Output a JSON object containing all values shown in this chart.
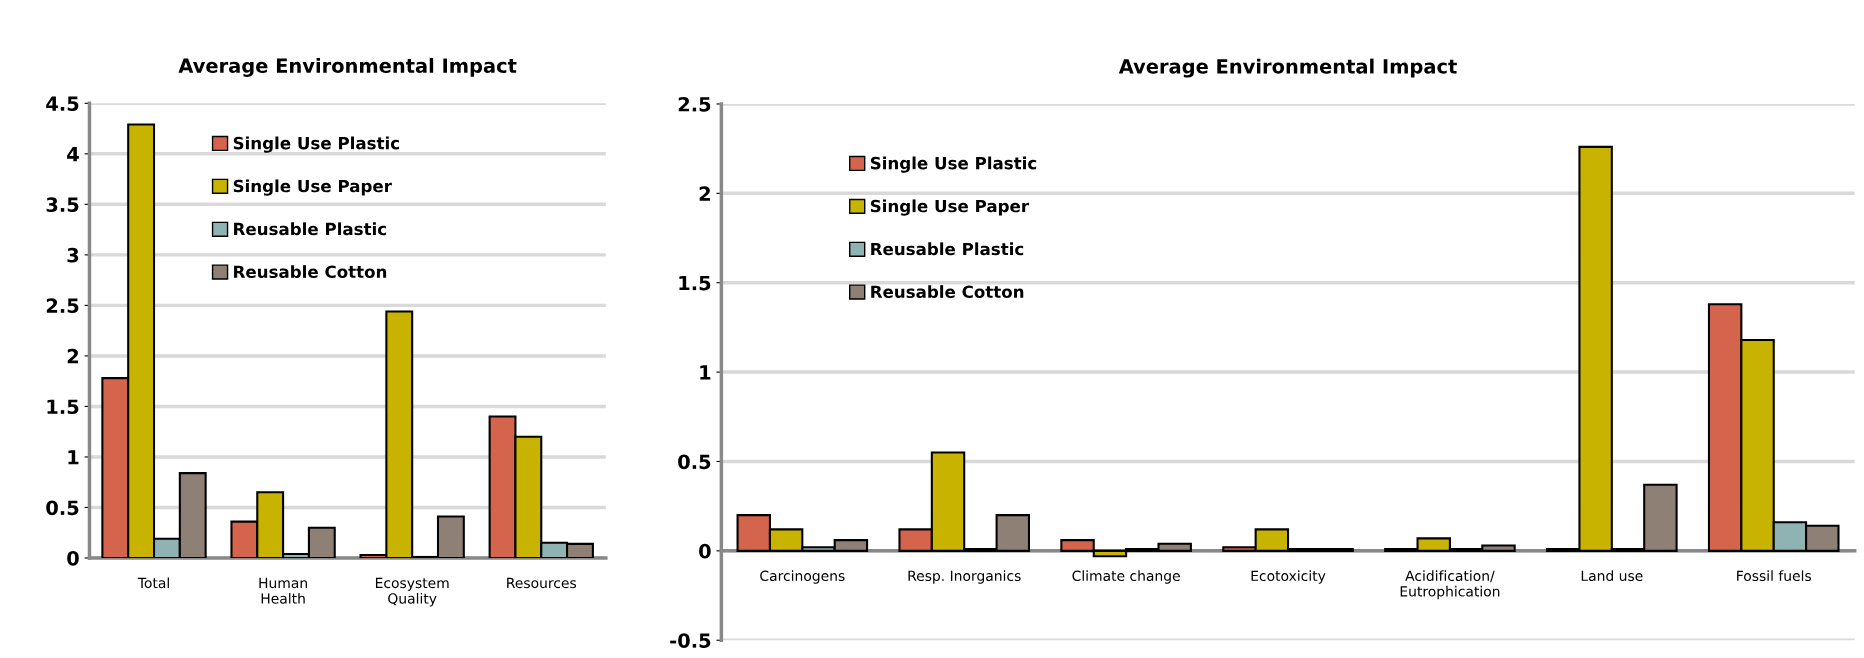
{
  "chart_data": [
    {
      "type": "bar",
      "title": "Average Environmental Impact",
      "categories": [
        "Total",
        "Human\nHealth",
        "Ecosystem\nQuality",
        "Resources"
      ],
      "series": [
        {
          "name": "Single Use Plastic",
          "color": "#d4644c",
          "values": [
            1.78,
            0.36,
            0.03,
            1.4
          ]
        },
        {
          "name": "Single Use Paper",
          "color": "#c8b400",
          "values": [
            4.29,
            0.65,
            2.44,
            1.2
          ]
        },
        {
          "name": "Reusable Plastic",
          "color": "#8fb3b3",
          "values": [
            0.19,
            0.04,
            0.01,
            0.15
          ]
        },
        {
          "name": "Reusable Cotton",
          "color": "#8f8076",
          "values": [
            0.84,
            0.3,
            0.41,
            0.14
          ]
        }
      ],
      "ylim": [
        0,
        4.5
      ],
      "yticks": [
        0,
        0.5,
        1,
        1.5,
        2,
        2.5,
        3,
        3.5,
        4,
        4.5
      ],
      "grid": "y",
      "legend": "top"
    },
    {
      "type": "bar",
      "title": "Average Environmental Impact",
      "categories": [
        "Carcinogens",
        "Resp. Inorganics",
        "Climate change",
        "Ecotoxicity",
        "Acidification/\nEutrophication",
        "Land use",
        "Fossil fuels"
      ],
      "series": [
        {
          "name": "Single Use Plastic",
          "color": "#d4644c",
          "values": [
            0.2,
            0.12,
            0.06,
            0.02,
            0.01,
            0.01,
            1.38
          ]
        },
        {
          "name": "Single Use Paper",
          "color": "#c8b400",
          "values": [
            0.12,
            0.55,
            -0.03,
            0.12,
            0.07,
            2.26,
            1.18
          ]
        },
        {
          "name": "Reusable Plastic",
          "color": "#8fb3b3",
          "values": [
            0.02,
            0.01,
            0.01,
            0.01,
            0.01,
            0.01,
            0.16
          ]
        },
        {
          "name": "Reusable Cotton",
          "color": "#8f8076",
          "values": [
            0.06,
            0.2,
            0.04,
            0.01,
            0.03,
            0.37,
            0.14
          ]
        }
      ],
      "ylim": [
        -0.5,
        2.5
      ],
      "yticks": [
        -0.5,
        0,
        0.5,
        1,
        1.5,
        2,
        2.5
      ],
      "grid": "y",
      "legend": "top left"
    }
  ]
}
